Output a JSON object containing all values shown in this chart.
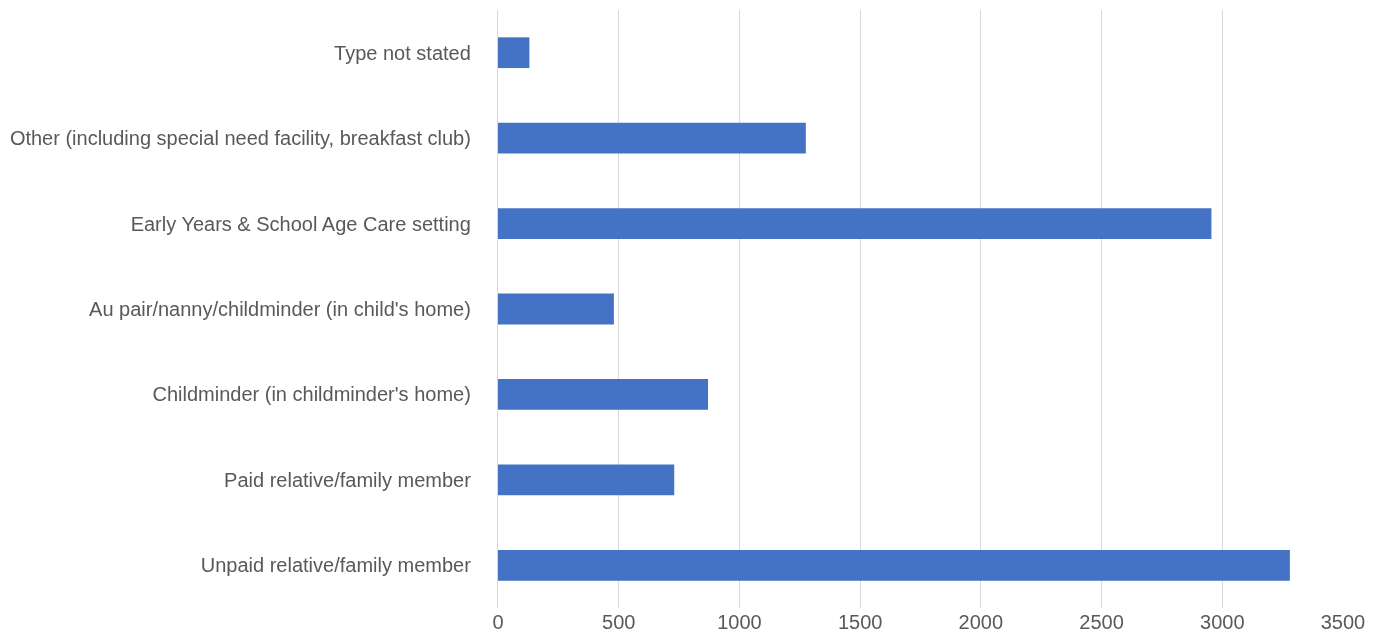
{
  "chart_data": {
    "type": "bar",
    "orientation": "horizontal",
    "categories": [
      "Type not stated",
      "Other (including special need facility, breakfast club)",
      "Early Years & School Age Care setting",
      "Au pair/nanny/childminder (in child's home)",
      "Childminder (in childminder's home)",
      "Paid relative/family member",
      "Unpaid relative/family member"
    ],
    "values": [
      130,
      1275,
      2955,
      480,
      870,
      730,
      3280
    ],
    "color": "#4472c4",
    "xlim": [
      0,
      3500
    ],
    "xticks": [
      0,
      500,
      1000,
      1500,
      2000,
      2500,
      3000,
      3500
    ],
    "grid": "x"
  }
}
